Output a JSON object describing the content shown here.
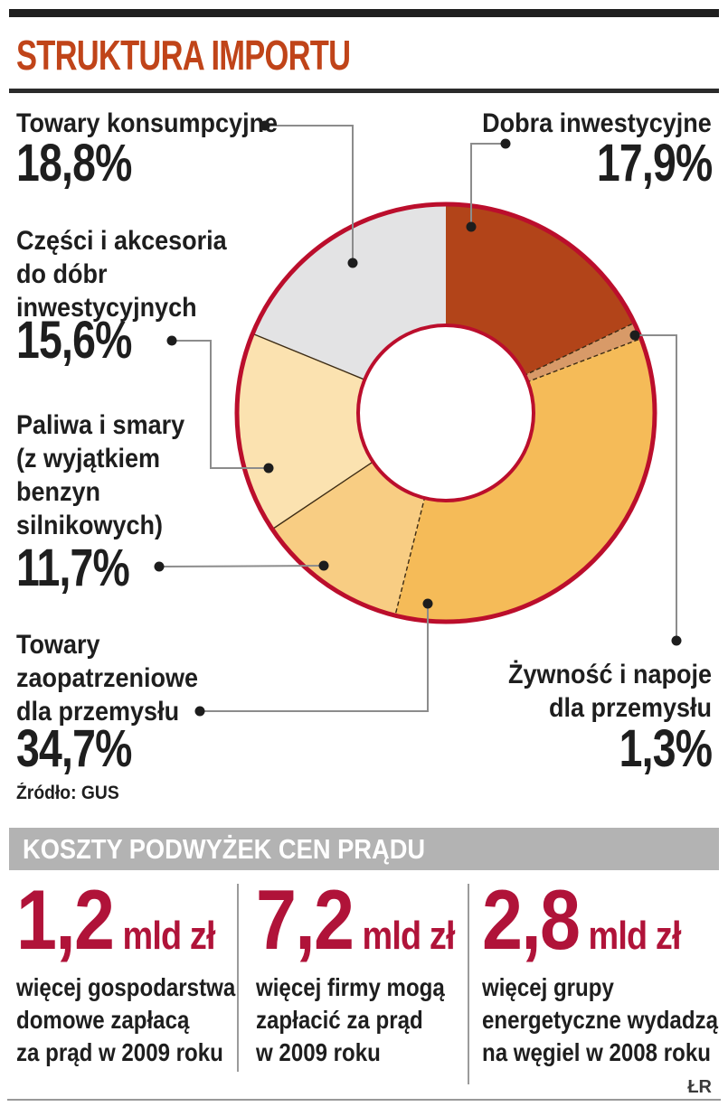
{
  "header": {
    "title": "STRUKTURA IMPORTU"
  },
  "chart_data": {
    "type": "pie",
    "subtype": "donut",
    "title": "STRUKTURA IMPORTU",
    "unit": "%",
    "direction": "clockwise",
    "start_angle_deg": 0,
    "ring_color": "#bb0e2c",
    "divider_color": "#3d2c15",
    "segments": [
      {
        "label": "Dobra inwestycyjne",
        "value": 17.9,
        "display": "17,9%",
        "color": "#b24419"
      },
      {
        "label": "Żywność i napoje dla przemysłu",
        "value": 1.3,
        "display": "1,3%",
        "color": "#d89a68"
      },
      {
        "label": "Towary zaopatrzeniowe dla przemysłu",
        "value": 34.7,
        "display": "34,7%",
        "color": "#f5bb58"
      },
      {
        "label": "Paliwa i smary (z wyjątkiem benzyn silnikowych)",
        "value": 11.7,
        "display": "11,7%",
        "color": "#f8cd83"
      },
      {
        "label": "Części i akcesoria do dóbr inwestycyjnych",
        "value": 15.6,
        "display": "15,6%",
        "color": "#fbe2b0"
      },
      {
        "label": "Towary konsumpcyjne",
        "value": 18.8,
        "display": "18,8%",
        "color": "#e3e3e4"
      }
    ],
    "source": "Źródło: GUS"
  },
  "labels": {
    "towary_konsumpcyjne": {
      "lines": [
        "Towary konsumpcyjne"
      ],
      "pct": "18,8%"
    },
    "dobra_inwestycyjne": {
      "lines": [
        "Dobra inwestycyjne"
      ],
      "pct": "17,9%"
    },
    "czesci_akcesoria": {
      "lines": [
        "Części i akcesoria",
        "do dóbr",
        "inwestycyjnych"
      ],
      "pct": "15,6%"
    },
    "paliwa_smary": {
      "lines": [
        "Paliwa i smary",
        "(z wyjątkiem",
        "benzyn",
        "silnikowych)"
      ],
      "pct": "11,7%"
    },
    "towary_zaopatrzeniowe": {
      "lines": [
        "Towary",
        "zaopatrzeniowe",
        "dla przemysłu"
      ],
      "pct": "34,7%"
    },
    "zywnosc_napoje": {
      "lines": [
        "Żywność i napoje",
        "dla przemysłu"
      ],
      "pct": "1,3%"
    }
  },
  "source": "Źródło: GUS",
  "section2": {
    "title": "KOSZTY PODWYŻEK CEN PRĄDU",
    "stats": [
      {
        "value": "1,2",
        "unit": "mld zł",
        "desc_lines": [
          "więcej gospodarstwa",
          "domowe zapłacą",
          "za prąd w 2009 roku"
        ]
      },
      {
        "value": "7,2",
        "unit": "mld zł",
        "desc_lines": [
          "więcej firmy mogą",
          "zapłacić za prąd",
          "w 2009 roku"
        ]
      },
      {
        "value": "2,8",
        "unit": "mld zł",
        "desc_lines": [
          "więcej grupy",
          "energetyczne wydadzą",
          "na węgiel w 2008 roku"
        ]
      }
    ],
    "credit": "ŁR"
  },
  "colors": {
    "title_orange": "#c04419",
    "stat_crimson": "#b01339",
    "band_gray": "#b3b3b3",
    "leader_gray": "#8c8c8c",
    "text_dark": "#1e1e1e"
  }
}
